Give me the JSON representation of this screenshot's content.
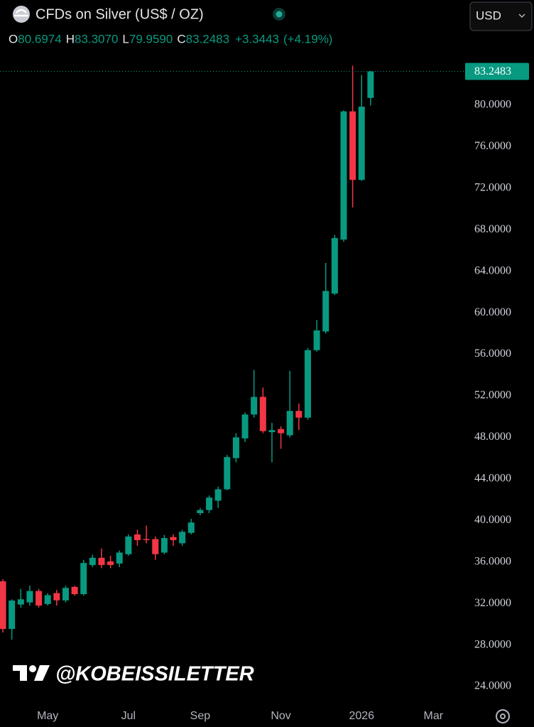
{
  "chart_data": {
    "type": "candlestick",
    "title": "CFDs on Silver (US$ / OZ)",
    "currency": "USD",
    "ohlc_legend": [
      {
        "label": "O",
        "value": "80.6974"
      },
      {
        "label": "H",
        "value": "83.3070"
      },
      {
        "label": "L",
        "value": "79.9590"
      },
      {
        "label": "C",
        "value": "83.2483"
      }
    ],
    "change": "+3.3443",
    "change_pct": "(+4.19%)",
    "watermark": "@KOBEISSILETTER",
    "up_color": "#089981",
    "down_color": "#f23645",
    "x": [
      0,
      1,
      2,
      3,
      4,
      5,
      6,
      7,
      8,
      9,
      10,
      11,
      12,
      13,
      14,
      15,
      16,
      17,
      18,
      19,
      20,
      21,
      22,
      23,
      24,
      25,
      26,
      27,
      28,
      29,
      30,
      31,
      32,
      33,
      34,
      35,
      36,
      37,
      38,
      39,
      40,
      41
    ],
    "open": [
      34.13,
      29.54,
      31.9,
      32.1,
      33.2,
      31.95,
      33.0,
      32.3,
      33.6,
      32.9,
      35.7,
      36.4,
      36.05,
      35.85,
      36.75,
      38.65,
      38.2,
      38.2,
      36.9,
      38.4,
      37.8,
      38.8,
      40.7,
      41.0,
      41.9,
      43.0,
      46.0,
      47.9,
      50.2,
      51.9,
      48.5,
      48.8,
      48.2,
      50.55,
      49.9,
      56.4,
      58.2,
      61.85,
      67.05,
      79.4,
      72.8,
      80.6974
    ],
    "high": [
      34.34,
      32.4,
      33.4,
      33.7,
      33.4,
      33.0,
      33.3,
      33.7,
      33.7,
      36.2,
      36.7,
      37.3,
      36.6,
      37.1,
      38.65,
      39.1,
      39.5,
      38.45,
      38.6,
      38.65,
      39.1,
      40.15,
      41.2,
      42.4,
      43.25,
      46.3,
      48.4,
      50.4,
      54.5,
      52.8,
      49.4,
      49.05,
      54.4,
      51.25,
      56.6,
      59.3,
      64.8,
      67.5,
      79.5,
      83.8,
      82.9,
      83.307
    ],
    "low": [
      29.2,
      28.52,
      31.6,
      31.8,
      31.6,
      31.8,
      31.8,
      32.1,
      32.75,
      32.75,
      35.5,
      35.4,
      35.4,
      35.5,
      36.6,
      37.55,
      37.8,
      36.2,
      36.75,
      37.55,
      37.55,
      38.65,
      40.5,
      40.7,
      41.2,
      42.9,
      45.6,
      47.55,
      49.9,
      48.4,
      45.6,
      46.9,
      48.0,
      48.7,
      49.7,
      56.25,
      58.0,
      61.7,
      66.85,
      70.15,
      72.7,
      79.959
    ],
    "close": [
      29.54,
      32.28,
      32.4,
      33.2,
      31.8,
      32.8,
      32.3,
      33.5,
      32.9,
      35.9,
      36.4,
      35.7,
      35.7,
      36.9,
      38.45,
      38.1,
      38.1,
      36.75,
      38.3,
      38.1,
      38.9,
      39.8,
      41.0,
      42.2,
      43.0,
      46.1,
      48.0,
      50.2,
      51.9,
      48.6,
      48.7,
      48.4,
      50.55,
      49.9,
      56.4,
      58.3,
      62.1,
      67.2,
      79.4,
      72.8,
      79.85,
      83.2483
    ],
    "xlim": [
      -0.32,
      51.54
    ],
    "xticks": [
      {
        "value": 5,
        "label": "May"
      },
      {
        "value": 14,
        "label": "Jul"
      },
      {
        "value": 22,
        "label": "Sep"
      },
      {
        "value": 31,
        "label": "Nov"
      },
      {
        "value": 40,
        "label": "2026"
      },
      {
        "value": 48,
        "label": "Mar"
      }
    ],
    "ylim": [
      22.36,
      84.31
    ],
    "yticks": [
      {
        "value": 24,
        "label": "24.0000"
      },
      {
        "value": 28,
        "label": "28.0000"
      },
      {
        "value": 32,
        "label": "32.0000"
      },
      {
        "value": 36,
        "label": "36.0000"
      },
      {
        "value": 40,
        "label": "40.0000"
      },
      {
        "value": 44,
        "label": "44.0000"
      },
      {
        "value": 48,
        "label": "48.0000"
      },
      {
        "value": 52,
        "label": "52.0000"
      },
      {
        "value": 56,
        "label": "56.0000"
      },
      {
        "value": 60,
        "label": "60.0000"
      },
      {
        "value": 64,
        "label": "64.0000"
      },
      {
        "value": 68,
        "label": "68.0000"
      },
      {
        "value": 72,
        "label": "72.0000"
      },
      {
        "value": 76,
        "label": "76.0000"
      },
      {
        "value": 80,
        "label": "80.0000"
      }
    ]
  }
}
